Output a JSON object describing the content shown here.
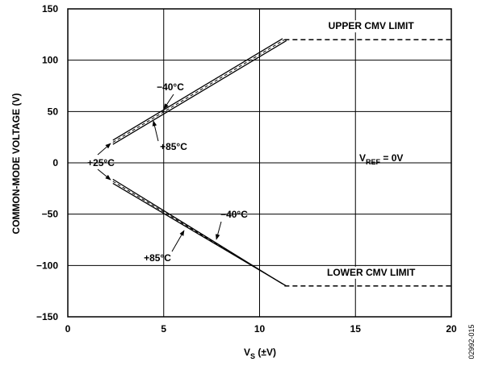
{
  "chart_data": {
    "type": "line",
    "ylabel": "COMMON-MODE VOLTAGE (V)",
    "xlabel_main": "V",
    "xlabel_sub": "S",
    "xlabel_rest": " (±V)",
    "xlim": [
      0,
      20
    ],
    "ylim": [
      -150,
      150
    ],
    "x_ticks": [
      0,
      5,
      10,
      15,
      20
    ],
    "y_ticks": [
      150,
      100,
      50,
      0,
      -50,
      -100,
      -150
    ],
    "x_tick_labels": [
      "0",
      "5",
      "10",
      "15",
      "20"
    ],
    "y_tick_labels": [
      "150",
      "100",
      "50",
      "0",
      "−50",
      "−100",
      "−150"
    ],
    "grid": true,
    "figure_id": "02992-015",
    "series": [
      {
        "name": "−40°C",
        "branch": "upper",
        "style": "solid",
        "x": [
          2.35,
          11.2
        ],
        "y": [
          22,
          121
        ]
      },
      {
        "name": "+25°C",
        "branch": "upper",
        "style": "dashed",
        "x": [
          2.35,
          11.3
        ],
        "y": [
          20,
          120
        ]
      },
      {
        "name": "+85°C",
        "branch": "upper",
        "style": "solid",
        "x": [
          2.35,
          11.4
        ],
        "y": [
          18,
          119
        ]
      },
      {
        "name": "−40°C",
        "branch": "lower",
        "style": "solid",
        "x": [
          2.35,
          11.2
        ],
        "y": [
          -16,
          -118
        ]
      },
      {
        "name": "+25°C",
        "branch": "lower",
        "style": "dashed",
        "x": [
          2.35,
          11.3
        ],
        "y": [
          -18,
          -119
        ]
      },
      {
        "name": "+85°C",
        "branch": "lower",
        "style": "solid",
        "x": [
          2.35,
          11.4
        ],
        "y": [
          -20,
          -120
        ]
      }
    ],
    "limits": [
      {
        "label": "UPPER CMV LIMIT",
        "y": 120,
        "x_from": 11.3,
        "x_to": 20
      },
      {
        "label": "LOWER CMV LIMIT",
        "y": -120,
        "x_from": 11.3,
        "x_to": 20
      }
    ],
    "annotations": {
      "upper_cold": "−40°C",
      "upper_hot": "+85°C",
      "room": "+25°C",
      "lower_cold": "−40°C",
      "lower_hot": "+85°C",
      "vref_main": "V",
      "vref_sub": "REF",
      "vref_rest": " = 0V"
    }
  }
}
